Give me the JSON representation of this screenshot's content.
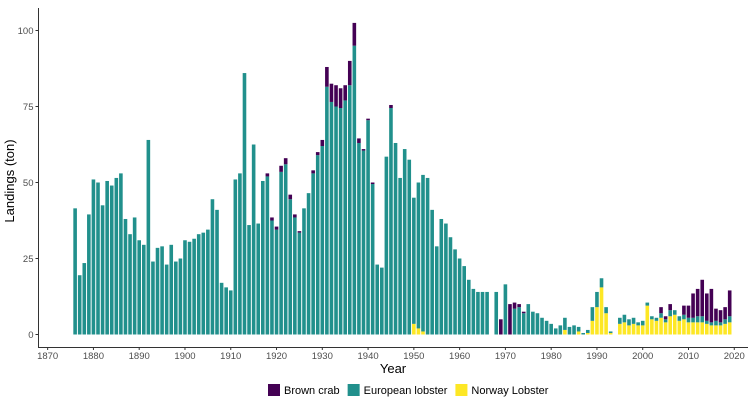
{
  "chart_data": {
    "type": "bar",
    "stacked": true,
    "xlabel": "Year",
    "ylabel": "Landings (ton)",
    "xlim": [
      1868,
      2023
    ],
    "ylim": [
      0,
      105
    ],
    "xticks": [
      1870,
      1880,
      1890,
      1900,
      1910,
      1920,
      1930,
      1940,
      1950,
      1960,
      1970,
      1980,
      1990,
      2000,
      2010,
      2020
    ],
    "yticks": [
      0,
      25,
      50,
      75,
      100
    ],
    "grid": false,
    "legend_position": "bottom",
    "stack_order": [
      "Norway Lobster",
      "European lobster",
      "Brown crab"
    ],
    "series": [
      {
        "name": "European lobster",
        "color": "#21908C",
        "points": [
          [
            1876,
            41.5
          ],
          [
            1877,
            19.5
          ],
          [
            1878,
            23.5
          ],
          [
            1879,
            39.5
          ],
          [
            1880,
            51
          ],
          [
            1881,
            50
          ],
          [
            1882,
            42.5
          ],
          [
            1883,
            50.5
          ],
          [
            1884,
            49
          ],
          [
            1885,
            51.5
          ],
          [
            1886,
            53
          ],
          [
            1887,
            38
          ],
          [
            1888,
            33
          ],
          [
            1889,
            38.5
          ],
          [
            1890,
            31
          ],
          [
            1891,
            29.5
          ],
          [
            1892,
            64
          ],
          [
            1893,
            24
          ],
          [
            1894,
            28.5
          ],
          [
            1895,
            29
          ],
          [
            1896,
            23
          ],
          [
            1897,
            29.5
          ],
          [
            1898,
            24
          ],
          [
            1899,
            25
          ],
          [
            1900,
            31
          ],
          [
            1901,
            30.5
          ],
          [
            1902,
            31.5
          ],
          [
            1903,
            33
          ],
          [
            1904,
            33.5
          ],
          [
            1905,
            34.5
          ],
          [
            1906,
            44.5
          ],
          [
            1907,
            41
          ],
          [
            1908,
            17
          ],
          [
            1909,
            15.5
          ],
          [
            1910,
            14.5
          ],
          [
            1911,
            51
          ],
          [
            1912,
            53
          ],
          [
            1913,
            86
          ],
          [
            1914,
            36
          ],
          [
            1915,
            62.5
          ],
          [
            1916,
            36.5
          ],
          [
            1917,
            50.5
          ],
          [
            1918,
            52
          ],
          [
            1919,
            37.5
          ],
          [
            1920,
            34.5
          ],
          [
            1921,
            53.5
          ],
          [
            1922,
            56
          ],
          [
            1923,
            44.5
          ],
          [
            1924,
            38.5
          ],
          [
            1925,
            33.5
          ],
          [
            1926,
            41.5
          ],
          [
            1927,
            46.5
          ],
          [
            1928,
            53
          ],
          [
            1929,
            59
          ],
          [
            1930,
            62
          ],
          [
            1931,
            81.5
          ],
          [
            1932,
            76.5
          ],
          [
            1933,
            75
          ],
          [
            1934,
            74.5
          ],
          [
            1935,
            77
          ],
          [
            1936,
            82
          ],
          [
            1937,
            95
          ],
          [
            1938,
            63
          ],
          [
            1939,
            60.5
          ],
          [
            1940,
            70.5
          ],
          [
            1941,
            49.5
          ],
          [
            1942,
            23
          ],
          [
            1943,
            22
          ],
          [
            1944,
            58.5
          ],
          [
            1945,
            74.5
          ],
          [
            1946,
            63
          ],
          [
            1947,
            51.5
          ],
          [
            1948,
            61
          ],
          [
            1949,
            57.5
          ],
          [
            1950,
            41.5
          ],
          [
            1951,
            48
          ],
          [
            1952,
            51.5
          ],
          [
            1953,
            51.5
          ],
          [
            1954,
            41
          ],
          [
            1955,
            29
          ],
          [
            1956,
            38
          ],
          [
            1957,
            36.5
          ],
          [
            1958,
            32
          ],
          [
            1959,
            28
          ],
          [
            1960,
            25
          ],
          [
            1961,
            22.5
          ],
          [
            1962,
            18
          ],
          [
            1963,
            15
          ],
          [
            1964,
            14
          ],
          [
            1965,
            14
          ],
          [
            1966,
            14
          ],
          [
            1968,
            14
          ],
          [
            1969,
            0
          ],
          [
            1970,
            16.5
          ],
          [
            1971,
            0
          ],
          [
            1972,
            8.5
          ],
          [
            1973,
            9
          ],
          [
            1974,
            7
          ],
          [
            1975,
            10
          ],
          [
            1976,
            7.5
          ],
          [
            1977,
            7
          ],
          [
            1978,
            5.5
          ],
          [
            1979,
            4.5
          ],
          [
            1980,
            3.5
          ],
          [
            1981,
            2
          ],
          [
            1982,
            3
          ],
          [
            1983,
            4
          ],
          [
            1984,
            2.5
          ],
          [
            1985,
            3
          ],
          [
            1986,
            1.5
          ],
          [
            1987,
            0.5
          ],
          [
            1988,
            1
          ],
          [
            1989,
            4.5
          ],
          [
            1990,
            5
          ],
          [
            1991,
            3
          ],
          [
            1992,
            2
          ],
          [
            1993,
            0.5
          ],
          [
            1995,
            2
          ],
          [
            1996,
            2.5
          ],
          [
            1997,
            2
          ],
          [
            1998,
            2
          ],
          [
            1999,
            1
          ],
          [
            2000,
            1.5
          ],
          [
            2001,
            1
          ],
          [
            2002,
            1
          ],
          [
            2003,
            1
          ],
          [
            2004,
            1.5
          ],
          [
            2005,
            1
          ],
          [
            2006,
            2
          ],
          [
            2007,
            1.5
          ],
          [
            2008,
            1.5
          ],
          [
            2009,
            1.5
          ],
          [
            2010,
            1.5
          ],
          [
            2011,
            1.5
          ],
          [
            2012,
            2
          ],
          [
            2013,
            2
          ],
          [
            2014,
            1
          ],
          [
            2015,
            1
          ],
          [
            2016,
            1.5
          ],
          [
            2017,
            1
          ],
          [
            2018,
            1.5
          ],
          [
            2019,
            2
          ]
        ]
      },
      {
        "name": "Brown crab",
        "color": "#440154",
        "points": [
          [
            1918,
            1
          ],
          [
            1919,
            1
          ],
          [
            1920,
            1
          ],
          [
            1921,
            2
          ],
          [
            1922,
            2
          ],
          [
            1923,
            1.5
          ],
          [
            1924,
            1
          ],
          [
            1925,
            0.5
          ],
          [
            1928,
            1
          ],
          [
            1929,
            1
          ],
          [
            1930,
            2
          ],
          [
            1931,
            6.5
          ],
          [
            1932,
            6
          ],
          [
            1933,
            7
          ],
          [
            1934,
            6.5
          ],
          [
            1935,
            5
          ],
          [
            1936,
            8
          ],
          [
            1937,
            7.5
          ],
          [
            1938,
            1.5
          ],
          [
            1939,
            0.5
          ],
          [
            1940,
            0.5
          ],
          [
            1941,
            0.5
          ],
          [
            1945,
            1
          ],
          [
            1969,
            5
          ],
          [
            1971,
            10
          ],
          [
            1972,
            2
          ],
          [
            1973,
            1
          ],
          [
            1974,
            0.5
          ],
          [
            2004,
            2
          ],
          [
            2005,
            1
          ],
          [
            2006,
            2
          ],
          [
            2009,
            3
          ],
          [
            2010,
            4
          ],
          [
            2011,
            8
          ],
          [
            2012,
            9
          ],
          [
            2013,
            12
          ],
          [
            2014,
            9
          ],
          [
            2015,
            11
          ],
          [
            2016,
            4
          ],
          [
            2017,
            4
          ],
          [
            2018,
            4
          ],
          [
            2019,
            8.5
          ]
        ]
      },
      {
        "name": "Norway Lobster",
        "color": "#FDE725",
        "points": [
          [
            1950,
            3.5
          ],
          [
            1951,
            2
          ],
          [
            1952,
            1
          ],
          [
            1983,
            1.5
          ],
          [
            1986,
            1
          ],
          [
            1988,
            0.5
          ],
          [
            1989,
            4.5
          ],
          [
            1990,
            9
          ],
          [
            1991,
            15.5
          ],
          [
            1992,
            7
          ],
          [
            1993,
            0.5
          ],
          [
            1995,
            3.5
          ],
          [
            1996,
            4
          ],
          [
            1997,
            3
          ],
          [
            1998,
            3.5
          ],
          [
            1999,
            3
          ],
          [
            2000,
            3
          ],
          [
            2001,
            9.5
          ],
          [
            2002,
            5
          ],
          [
            2003,
            4.5
          ],
          [
            2004,
            5.5
          ],
          [
            2005,
            4
          ],
          [
            2006,
            6
          ],
          [
            2007,
            6.5
          ],
          [
            2008,
            4.5
          ],
          [
            2009,
            5
          ],
          [
            2010,
            4
          ],
          [
            2011,
            4
          ],
          [
            2012,
            4
          ],
          [
            2013,
            4
          ],
          [
            2014,
            3.5
          ],
          [
            2015,
            3
          ],
          [
            2016,
            3
          ],
          [
            2017,
            3
          ],
          [
            2018,
            3.5
          ],
          [
            2019,
            4
          ]
        ]
      }
    ]
  }
}
